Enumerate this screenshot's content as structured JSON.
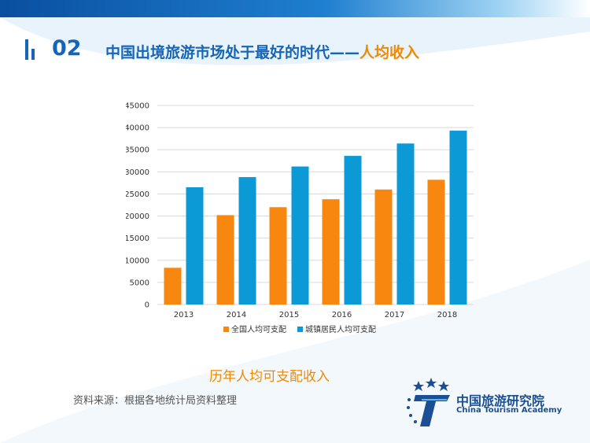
{
  "header": {
    "section_number": "02",
    "title_main": "中国出境旅游市场处于最好的时代——",
    "title_highlight": "人均收入"
  },
  "chart_data": {
    "type": "bar",
    "categories": [
      "2013",
      "2014",
      "2015",
      "2016",
      "2017",
      "2018"
    ],
    "series": [
      {
        "name": "全国人均可支配",
        "values": [
          8300,
          20200,
          22000,
          23800,
          26000,
          28200
        ],
        "color": "#f7870f"
      },
      {
        "name": "城镇居民人均可支配",
        "values": [
          26500,
          28800,
          31200,
          33600,
          36400,
          39300
        ],
        "color": "#0c9ad6"
      }
    ],
    "yticks": [
      "0",
      "5000",
      "10000",
      "15000",
      "20000",
      "25000",
      "30000",
      "35000",
      "40000",
      "45000"
    ],
    "ylim": [
      0,
      45000
    ],
    "grid": true,
    "legend": "bottom"
  },
  "caption": "历年人均可支配收入",
  "source": "资料来源：根据各地统计局资料整理",
  "logo": {
    "name_cn": "中国旅游研究院",
    "name_en": "China Tourism Academy"
  },
  "colors": {
    "brand_blue": "#1565b8",
    "accent_orange": "#f08a00"
  }
}
